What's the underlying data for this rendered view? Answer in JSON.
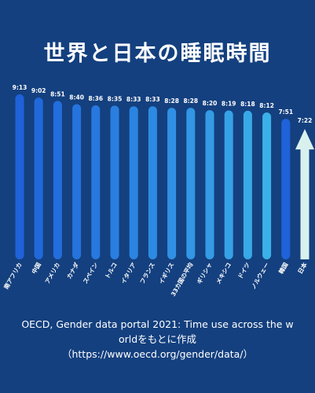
{
  "title": "世界と日本の睡眠時間",
  "colors": {
    "background": "#14407f",
    "bars": [
      "#1f62d9",
      "#2168db",
      "#236ddc",
      "#2573dd",
      "#2778df",
      "#297ee0",
      "#2b84e1",
      "#2d8ae2",
      "#3090e3",
      "#3296e4",
      "#349ce5",
      "#36a2e6",
      "#39a8e7",
      "#3bb0e8"
    ],
    "japan_arrow": "#d9f1ee"
  },
  "chart_data": {
    "type": "bar",
    "title": "世界と日本の睡眠時間",
    "categories": [
      "南アフリカ",
      "中国",
      "アメリカ",
      "カナダ",
      "スペイン",
      "トルコ",
      "イタリア",
      "フランス",
      "イギリス",
      "33カ国の平均",
      "ギリシャ",
      "メキシコ",
      "ドイツ",
      "ノルウェー",
      "韓国",
      "日本"
    ],
    "values_minutes": [
      553,
      542,
      531,
      520,
      516,
      515,
      513,
      513,
      508,
      508,
      500,
      499,
      498,
      492,
      471,
      442
    ],
    "data_labels": [
      "9:13",
      "9:02",
      "8:51",
      "8:40",
      "8:36",
      "8:35",
      "8:33",
      "8:33",
      "8:28",
      "8:28",
      "8:20",
      "8:19",
      "8:18",
      "8:12",
      "7:51",
      "7:22"
    ],
    "highlight": "日本",
    "xlabel": "",
    "ylabel": ""
  },
  "source": {
    "line1": "OECD, Gender data portal 2021: Time use across the w",
    "line2": "orldをもとに作成",
    "line3": "（https://www.oecd.org/gender/data/）"
  }
}
